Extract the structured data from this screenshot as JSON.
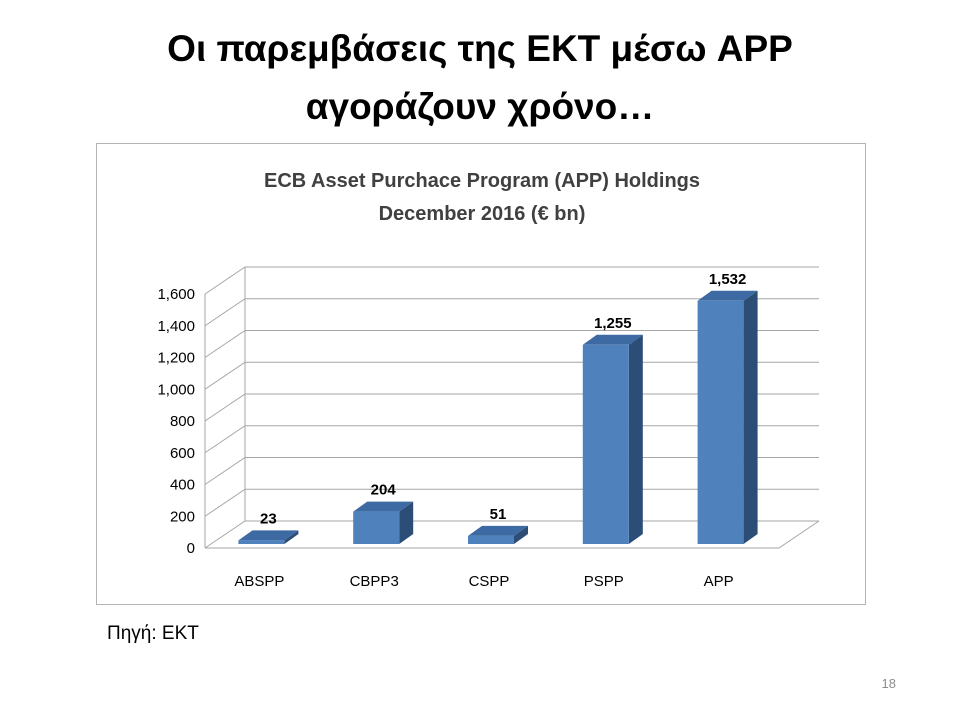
{
  "slide": {
    "title_line1": "Οι παρεμβάσεις της ΕΚΤ μέσω APP",
    "title_line2": "αγοράζουν χρόνο…",
    "source": "Πηγή: ΕΚΤ",
    "page_number": "18"
  },
  "chart_data": {
    "type": "bar",
    "title_lines": [
      "ECB Asset Purchace Program   (APP) Holdings",
      "December 2016 (€ bn)"
    ],
    "categories": [
      "ABSPP",
      "CBPP3",
      "CSPP",
      "PSPP",
      "APP"
    ],
    "values": [
      23,
      204,
      51,
      1255,
      1532
    ],
    "value_labels": [
      "23",
      "204",
      "51",
      "1,255",
      "1,532"
    ],
    "yticks": [
      0,
      200,
      400,
      600,
      800,
      1000,
      1200,
      1400,
      1600
    ],
    "ytick_labels": [
      "0",
      "200",
      "400",
      "600",
      "800",
      "1,000",
      "1,200",
      "1,400",
      "1,600"
    ],
    "ylim": [
      0,
      1600
    ],
    "grid": true,
    "style": "3d-column",
    "colors": {
      "front": "#4f81bd",
      "side": "#2c4d75",
      "top": "#3e6aa3",
      "grid": "#a6a6a6"
    }
  }
}
